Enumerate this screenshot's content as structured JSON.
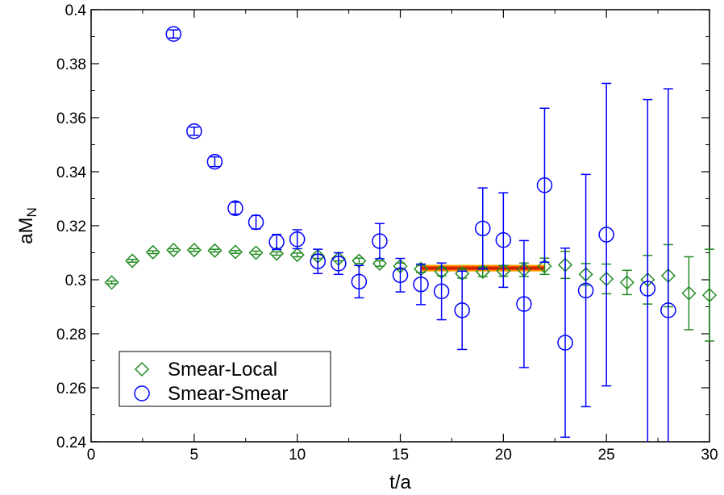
{
  "chart_data": {
    "type": "scatter",
    "xlabel": "t/a",
    "ylabel_main": "aM",
    "ylabel_sub": "N",
    "xlim": [
      0,
      30
    ],
    "ylim": [
      0.24,
      0.4
    ],
    "x_ticks": [
      0,
      5,
      10,
      15,
      20,
      25,
      30
    ],
    "y_ticks": [
      0.24,
      0.26,
      0.28,
      0.3,
      0.32,
      0.34,
      0.36,
      0.38,
      0.4
    ],
    "y_tick_labels": [
      "0.24",
      "0.26",
      "0.28",
      "0.3",
      "0.32",
      "0.34",
      "0.36",
      "0.38",
      "0.4"
    ],
    "x_tick_labels": [
      "0",
      "5",
      "10",
      "15",
      "20",
      "25",
      "30"
    ],
    "grid": false,
    "legend_position": "bottom-left",
    "series": [
      {
        "name": "Smear-Local",
        "marker": "diamond",
        "color": "#228b22",
        "points": [
          {
            "x": 1,
            "y": 0.299,
            "err": 0.0005
          },
          {
            "x": 2,
            "y": 0.307,
            "err": 0.0005
          },
          {
            "x": 3,
            "y": 0.3102,
            "err": 0.0005
          },
          {
            "x": 4,
            "y": 0.311,
            "err": 0.0005
          },
          {
            "x": 5,
            "y": 0.311,
            "err": 0.0005
          },
          {
            "x": 6,
            "y": 0.3108,
            "err": 0.0005
          },
          {
            "x": 7,
            "y": 0.3103,
            "err": 0.0005
          },
          {
            "x": 8,
            "y": 0.31,
            "err": 0.0006
          },
          {
            "x": 9,
            "y": 0.3097,
            "err": 0.0006
          },
          {
            "x": 10,
            "y": 0.3092,
            "err": 0.0007
          },
          {
            "x": 11,
            "y": 0.3087,
            "err": 0.0008
          },
          {
            "x": 12,
            "y": 0.3078,
            "err": 0.0008
          },
          {
            "x": 13,
            "y": 0.307,
            "err": 0.001
          },
          {
            "x": 14,
            "y": 0.306,
            "err": 0.001
          },
          {
            "x": 15,
            "y": 0.305,
            "err": 0.0012
          },
          {
            "x": 16,
            "y": 0.304,
            "err": 0.0013
          },
          {
            "x": 17,
            "y": 0.303,
            "err": 0.0015
          },
          {
            "x": 18,
            "y": 0.3023,
            "err": 0.0017
          },
          {
            "x": 19,
            "y": 0.303,
            "err": 0.0018
          },
          {
            "x": 20,
            "y": 0.3033,
            "err": 0.002
          },
          {
            "x": 21,
            "y": 0.3037,
            "err": 0.0025
          },
          {
            "x": 22,
            "y": 0.305,
            "err": 0.003
          },
          {
            "x": 23,
            "y": 0.3055,
            "err": 0.005
          },
          {
            "x": 24,
            "y": 0.302,
            "err": 0.004
          },
          {
            "x": 25,
            "y": 0.3003,
            "err": 0.0055
          },
          {
            "x": 26,
            "y": 0.299,
            "err": 0.0045
          },
          {
            "x": 27,
            "y": 0.3,
            "err": 0.009
          },
          {
            "x": 28,
            "y": 0.3015,
            "err": 0.0115
          },
          {
            "x": 29,
            "y": 0.295,
            "err": 0.0135
          },
          {
            "x": 30,
            "y": 0.2943,
            "err": 0.017
          }
        ]
      },
      {
        "name": "Smear-Smear",
        "marker": "circle",
        "color": "#0000ff",
        "points": [
          {
            "x": 4,
            "y": 0.391,
            "err": 0.0015
          },
          {
            "x": 5,
            "y": 0.355,
            "err": 0.0015
          },
          {
            "x": 6,
            "y": 0.3437,
            "err": 0.0018
          },
          {
            "x": 7,
            "y": 0.3265,
            "err": 0.0022
          },
          {
            "x": 8,
            "y": 0.3213,
            "err": 0.0025
          },
          {
            "x": 9,
            "y": 0.314,
            "err": 0.0028
          },
          {
            "x": 10,
            "y": 0.315,
            "err": 0.0035
          },
          {
            "x": 11,
            "y": 0.3068,
            "err": 0.0045
          },
          {
            "x": 12,
            "y": 0.306,
            "err": 0.004
          },
          {
            "x": 13,
            "y": 0.2993,
            "err": 0.006
          },
          {
            "x": 14,
            "y": 0.3143,
            "err": 0.0065
          },
          {
            "x": 15,
            "y": 0.3017,
            "err": 0.0062
          },
          {
            "x": 16,
            "y": 0.2983,
            "err": 0.0075
          },
          {
            "x": 17,
            "y": 0.2957,
            "err": 0.0105
          },
          {
            "x": 18,
            "y": 0.2887,
            "err": 0.0145
          },
          {
            "x": 19,
            "y": 0.319,
            "err": 0.015
          },
          {
            "x": 20,
            "y": 0.3147,
            "err": 0.0175
          },
          {
            "x": 21,
            "y": 0.291,
            "err": 0.0235
          },
          {
            "x": 22,
            "y": 0.335,
            "err": 0.0285
          },
          {
            "x": 23,
            "y": 0.2767,
            "err": 0.035
          },
          {
            "x": 24,
            "y": 0.296,
            "err": 0.043
          },
          {
            "x": 25,
            "y": 0.3167,
            "err": 0.056
          },
          {
            "x": 27,
            "y": 0.2967,
            "err": 0.07
          },
          {
            "x": 28,
            "y": 0.2887,
            "err": 0.082
          }
        ]
      }
    ],
    "fit_band": {
      "x_range": [
        16,
        22
      ],
      "center": 0.3043,
      "half_width": 0.001,
      "fill_color": "#ff4500",
      "line_color": "#ffa500",
      "center_line_color": "#8b0000"
    }
  }
}
